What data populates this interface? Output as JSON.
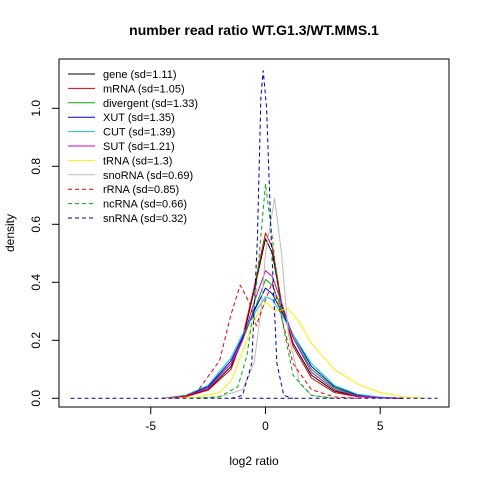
{
  "chart_data": {
    "type": "line",
    "title": "number read ratio WT.G1.3/WT.MMS.1",
    "xlabel": "log2 ratio",
    "ylabel": "density",
    "xlim": [
      -9,
      8
    ],
    "ylim": [
      -0.03,
      1.17
    ],
    "x_ticks": [
      -5,
      0,
      5
    ],
    "x_tick_labels": [
      "-5",
      "0",
      "5"
    ],
    "y_ticks": [
      0.0,
      0.2,
      0.4,
      0.6,
      0.8,
      1.0
    ],
    "y_tick_labels": [
      "0.0",
      "0.2",
      "0.4",
      "0.6",
      "0.8",
      "1.0"
    ],
    "grid": false,
    "legend_position": "top-left",
    "series": [
      {
        "name": "gene (sd=1.11)",
        "color": "#000000",
        "dash": "solid",
        "points": [
          [
            -4.5,
            0
          ],
          [
            -3.5,
            0.006
          ],
          [
            -2.5,
            0.03
          ],
          [
            -1.5,
            0.11
          ],
          [
            -1,
            0.2
          ],
          [
            -0.5,
            0.37
          ],
          [
            0,
            0.55
          ],
          [
            0.3,
            0.5
          ],
          [
            0.7,
            0.32
          ],
          [
            1.2,
            0.19
          ],
          [
            2,
            0.08
          ],
          [
            3,
            0.025
          ],
          [
            4,
            0.008
          ],
          [
            5,
            0.002
          ],
          [
            6,
            0
          ]
        ]
      },
      {
        "name": "mRNA (sd=1.05)",
        "color": "#dd0000",
        "dash": "solid",
        "points": [
          [
            -4.5,
            0
          ],
          [
            -3.5,
            0.005
          ],
          [
            -2.5,
            0.028
          ],
          [
            -1.5,
            0.1
          ],
          [
            -1,
            0.21
          ],
          [
            -0.5,
            0.38
          ],
          [
            0,
            0.57
          ],
          [
            0.3,
            0.52
          ],
          [
            0.7,
            0.33
          ],
          [
            1.2,
            0.18
          ],
          [
            2,
            0.07
          ],
          [
            3,
            0.02
          ],
          [
            4,
            0.006
          ],
          [
            5,
            0.001
          ],
          [
            6,
            0
          ]
        ]
      },
      {
        "name": "divergent (sd=1.33)",
        "color": "#00aa00",
        "dash": "solid",
        "points": [
          [
            -4.5,
            0
          ],
          [
            -3.5,
            0.008
          ],
          [
            -2.5,
            0.04
          ],
          [
            -1.5,
            0.12
          ],
          [
            -1,
            0.2
          ],
          [
            -0.5,
            0.3
          ],
          [
            0,
            0.41
          ],
          [
            0.3,
            0.39
          ],
          [
            0.7,
            0.31
          ],
          [
            1.2,
            0.21
          ],
          [
            2,
            0.1
          ],
          [
            3,
            0.035
          ],
          [
            4,
            0.01
          ],
          [
            5,
            0.003
          ],
          [
            6,
            0
          ]
        ]
      },
      {
        "name": "XUT (sd=1.35)",
        "color": "#0000cc",
        "dash": "solid",
        "points": [
          [
            -4.5,
            0
          ],
          [
            -3.5,
            0.008
          ],
          [
            -2.5,
            0.04
          ],
          [
            -1.5,
            0.13
          ],
          [
            -1,
            0.21
          ],
          [
            -0.5,
            0.3
          ],
          [
            0,
            0.38
          ],
          [
            0.3,
            0.36
          ],
          [
            0.7,
            0.3
          ],
          [
            1.2,
            0.22
          ],
          [
            2,
            0.11
          ],
          [
            3,
            0.04
          ],
          [
            4,
            0.012
          ],
          [
            5,
            0.003
          ],
          [
            6,
            0
          ]
        ]
      },
      {
        "name": "CUT (sd=1.39)",
        "color": "#00cccc",
        "dash": "solid",
        "points": [
          [
            -4.5,
            0
          ],
          [
            -3.5,
            0.01
          ],
          [
            -2.5,
            0.045
          ],
          [
            -1.5,
            0.14
          ],
          [
            -1,
            0.22
          ],
          [
            -0.5,
            0.29
          ],
          [
            0,
            0.35
          ],
          [
            0.3,
            0.34
          ],
          [
            0.7,
            0.29
          ],
          [
            1.2,
            0.22
          ],
          [
            2,
            0.12
          ],
          [
            3,
            0.045
          ],
          [
            4,
            0.014
          ],
          [
            5,
            0.004
          ],
          [
            6,
            0
          ]
        ]
      },
      {
        "name": "SUT (sd=1.21)",
        "color": "#cc00cc",
        "dash": "solid",
        "points": [
          [
            -4.5,
            0
          ],
          [
            -3.5,
            0.007
          ],
          [
            -2.5,
            0.035
          ],
          [
            -1.5,
            0.12
          ],
          [
            -1,
            0.2
          ],
          [
            -0.5,
            0.33
          ],
          [
            0,
            0.44
          ],
          [
            0.3,
            0.42
          ],
          [
            0.7,
            0.33
          ],
          [
            1.2,
            0.21
          ],
          [
            2,
            0.09
          ],
          [
            3,
            0.03
          ],
          [
            4,
            0.008
          ],
          [
            5,
            0.002
          ],
          [
            6,
            0
          ]
        ]
      },
      {
        "name": "tRNA (sd=1.3)",
        "color": "#ffee00",
        "dash": "solid",
        "points": [
          [
            -4.5,
            0
          ],
          [
            -3,
            0.003
          ],
          [
            -2,
            0.02
          ],
          [
            -1.5,
            0.06
          ],
          [
            -1,
            0.16
          ],
          [
            -0.5,
            0.27
          ],
          [
            0,
            0.33
          ],
          [
            0.5,
            0.3
          ],
          [
            1,
            0.31
          ],
          [
            1.5,
            0.26
          ],
          [
            2,
            0.19
          ],
          [
            3,
            0.1
          ],
          [
            4,
            0.05
          ],
          [
            5,
            0.02
          ],
          [
            6,
            0.005
          ],
          [
            7,
            0
          ]
        ]
      },
      {
        "name": "snoRNA (sd=0.69)",
        "color": "#bbbbbb",
        "dash": "solid",
        "points": [
          [
            -3,
            0
          ],
          [
            -2,
            0.005
          ],
          [
            -1,
            0.03
          ],
          [
            -0.5,
            0.12
          ],
          [
            -0.2,
            0.3
          ],
          [
            0,
            0.5
          ],
          [
            0.4,
            0.69
          ],
          [
            0.7,
            0.5
          ],
          [
            1,
            0.22
          ],
          [
            1.5,
            0.05
          ],
          [
            2,
            0.01
          ],
          [
            3,
            0
          ]
        ]
      },
      {
        "name": "rRNA (sd=0.85)",
        "color": "#dd0000",
        "dash": "dashed",
        "points": [
          [
            -4,
            0
          ],
          [
            -3,
            0.02
          ],
          [
            -2,
            0.13
          ],
          [
            -1.5,
            0.29
          ],
          [
            -1.1,
            0.39
          ],
          [
            -0.7,
            0.33
          ],
          [
            -0.4,
            0.25
          ],
          [
            0,
            0.34
          ],
          [
            0.3,
            0.4
          ],
          [
            0.7,
            0.28
          ],
          [
            1.2,
            0.12
          ],
          [
            2,
            0.03
          ],
          [
            3,
            0.005
          ],
          [
            4,
            0
          ]
        ]
      },
      {
        "name": "ncRNA (sd=0.66)",
        "color": "#00aa00",
        "dash": "dashed",
        "points": [
          [
            -3,
            0
          ],
          [
            -2,
            0.006
          ],
          [
            -1.2,
            0.04
          ],
          [
            -0.8,
            0.15
          ],
          [
            -0.4,
            0.38
          ],
          [
            0,
            0.74
          ],
          [
            0.3,
            0.55
          ],
          [
            0.7,
            0.28
          ],
          [
            1.2,
            0.08
          ],
          [
            2,
            0.01
          ],
          [
            3,
            0
          ]
        ]
      },
      {
        "name": "snRNA (sd=0.32)",
        "color": "#000099",
        "dash": "dashed",
        "points": [
          [
            -1.5,
            0
          ],
          [
            -1,
            0.01
          ],
          [
            -0.6,
            0.12
          ],
          [
            -0.35,
            0.55
          ],
          [
            -0.2,
            1.04
          ],
          [
            -0.1,
            1.13
          ],
          [
            0.05,
            1.0
          ],
          [
            0.25,
            0.55
          ],
          [
            0.5,
            0.12
          ],
          [
            0.8,
            0.01
          ],
          [
            1.2,
            0
          ]
        ]
      },
      {
        "name": "",
        "color": "#000099",
        "dash": "dashed",
        "points": [
          [
            -8.5,
            0
          ],
          [
            7.5,
            0
          ]
        ]
      }
    ]
  }
}
